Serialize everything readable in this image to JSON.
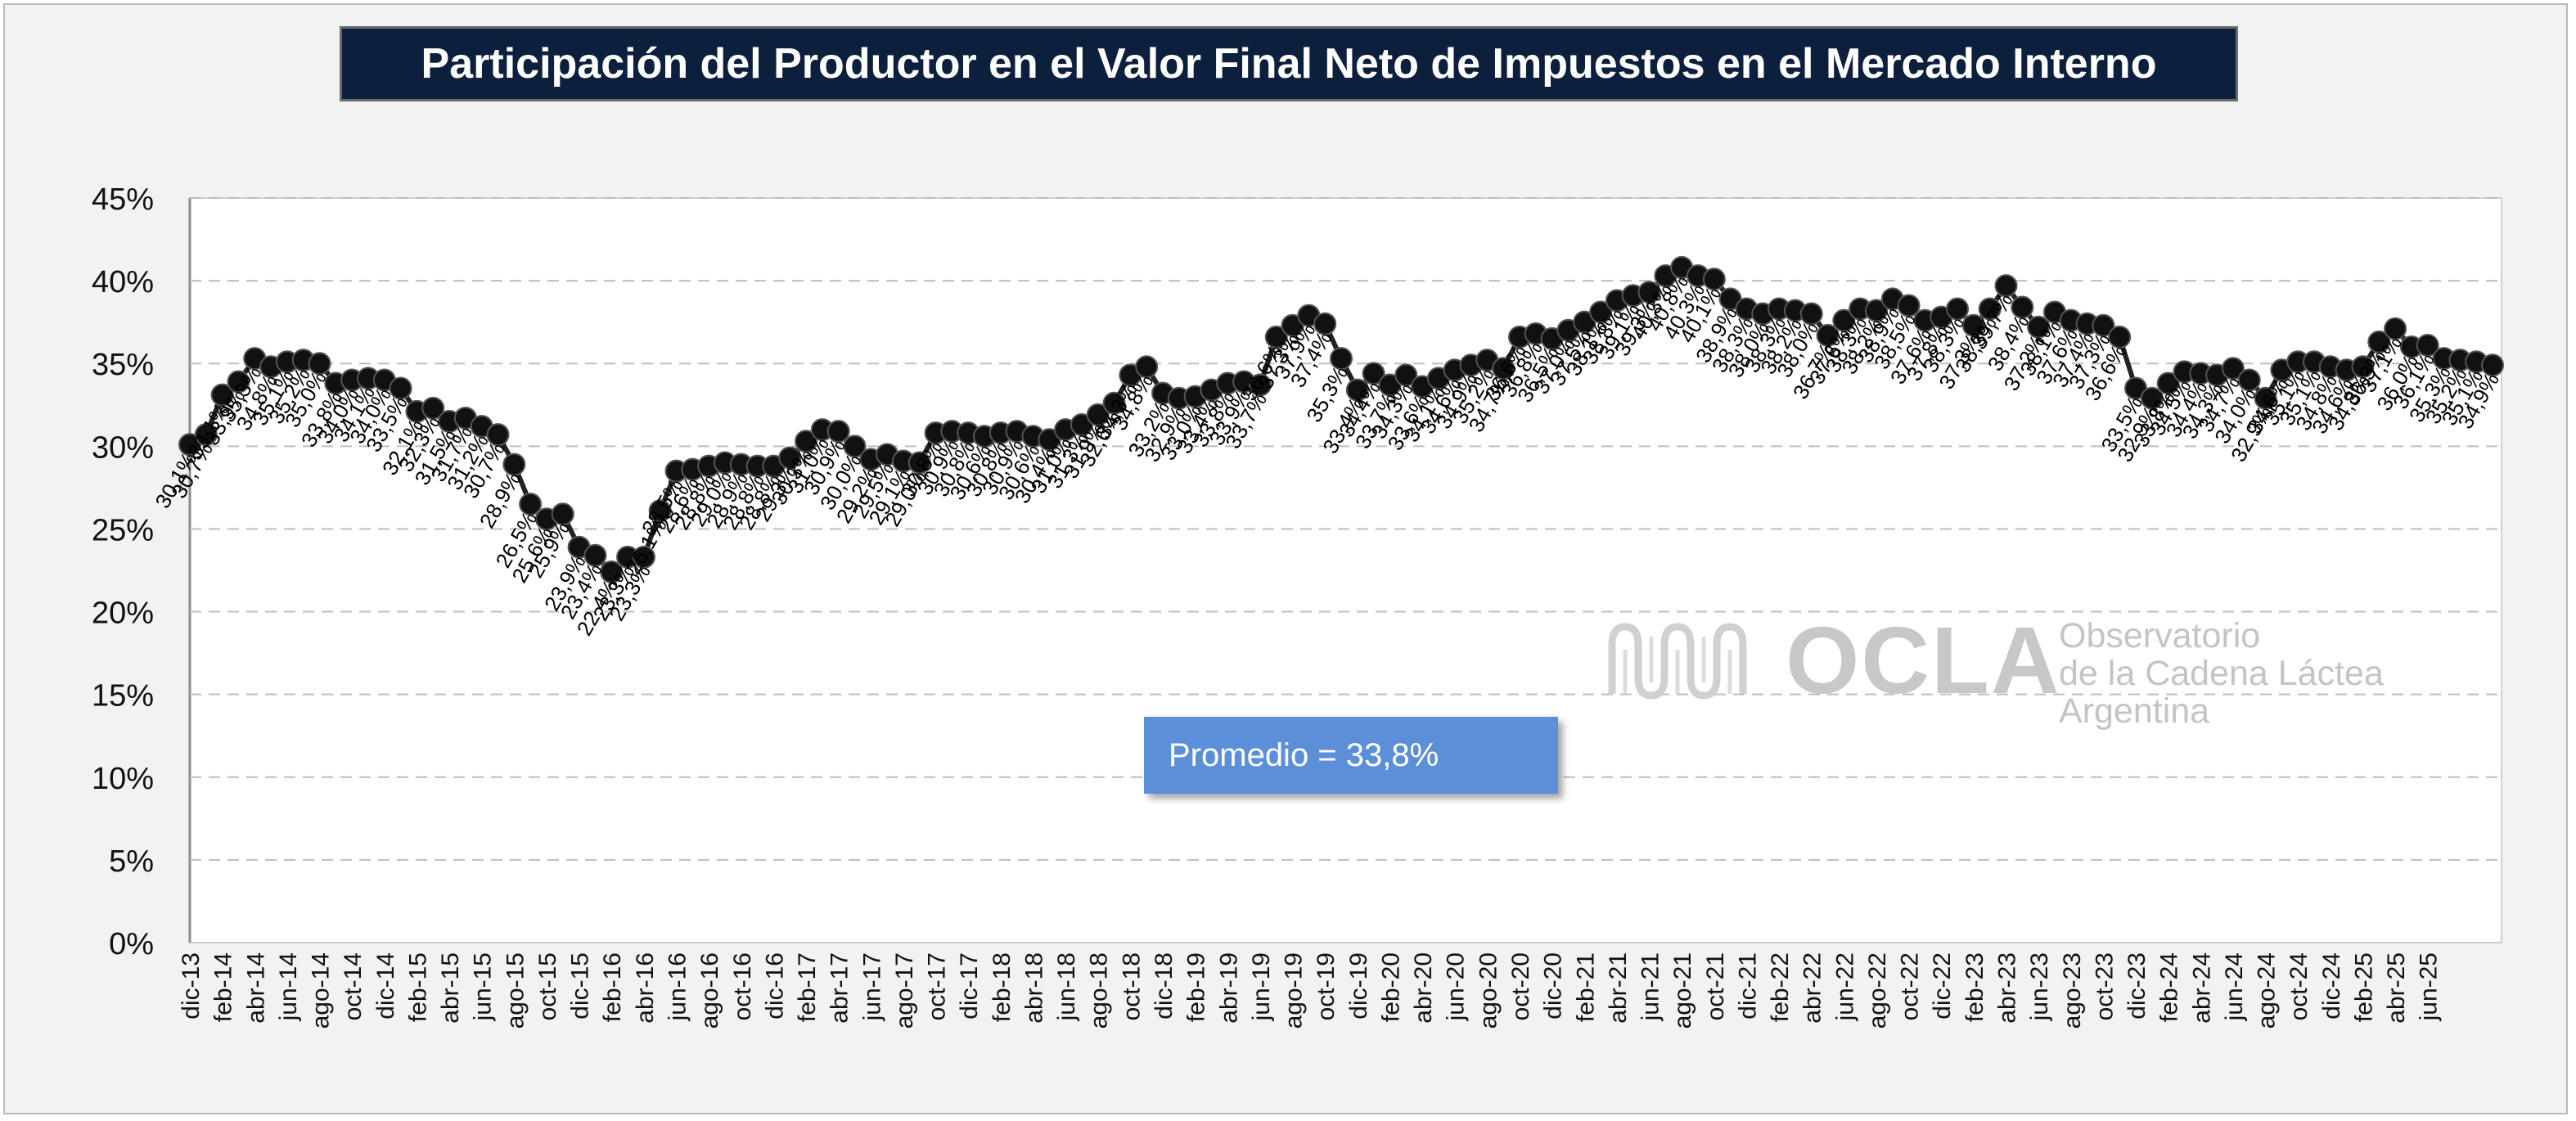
{
  "title": "Participación del Productor en el Valor Final Neto de Impuestos en el Mercado Interno",
  "average_label": "Promedio = 33,8%",
  "logo": {
    "name": "OCLA",
    "line1": "Observatorio",
    "line2": "de la Cadena Láctea",
    "line3": "Argentina"
  },
  "colors": {
    "title_bg": "#0c1f3d",
    "series": "#222222",
    "marker": "#111111",
    "average_box": "#5b8fd8",
    "gridline": "#bdbdbd"
  },
  "chart_data": {
    "type": "line",
    "title": "Participación del Productor en el Valor Final Neto de Impuestos en el Mercado Interno",
    "xlabel": "",
    "ylabel": "",
    "ylim": [
      0,
      45
    ],
    "y_ticks": [
      "0%",
      "5%",
      "10%",
      "15%",
      "20%",
      "25%",
      "30%",
      "35%",
      "40%",
      "45%"
    ],
    "grid": "horizontal dashed",
    "legend": "none",
    "x_tick_labels": [
      "dic-13",
      "feb-14",
      "abr-14",
      "jun-14",
      "ago-14",
      "oct-14",
      "dic-14",
      "feb-15",
      "abr-15",
      "jun-15",
      "ago-15",
      "oct-15",
      "dic-15",
      "feb-16",
      "abr-16",
      "jun-16",
      "ago-16",
      "oct-16",
      "dic-16",
      "feb-17",
      "abr-17",
      "jun-17",
      "ago-17",
      "oct-17",
      "dic-17",
      "feb-18",
      "abr-18",
      "jun-18",
      "ago-18",
      "oct-18",
      "dic-18",
      "feb-19",
      "abr-19",
      "jun-19",
      "ago-19",
      "oct-19",
      "dic-19",
      "feb-20",
      "abr-20",
      "jun-20",
      "ago-20",
      "oct-20",
      "dic-20",
      "feb-21",
      "abr-21",
      "jun-21",
      "ago-21",
      "oct-21",
      "dic-21",
      "feb-22",
      "abr-22",
      "jun-22",
      "ago-22",
      "oct-22",
      "dic-22",
      "feb-23",
      "abr-23",
      "jun-23",
      "ago-23",
      "oct-23",
      "dic-23",
      "feb-24",
      "abr-24",
      "jun-24",
      "ago-24",
      "oct-24",
      "dic-24",
      "feb-25",
      "abr-25",
      "jun-25"
    ],
    "series": [
      {
        "values": [
          30.1,
          30.7,
          33.1,
          33.9,
          35.3,
          34.8,
          35.1,
          35.2,
          35.0,
          33.8,
          34.0,
          34.1,
          34.0,
          33.5,
          32.1,
          32.3,
          31.5,
          31.7,
          31.2,
          30.7,
          28.9,
          26.5,
          25.6,
          25.9,
          23.9,
          23.4,
          22.4,
          23.3,
          23.3,
          26.1,
          28.5,
          28.6,
          28.8,
          29.0,
          28.9,
          28.8,
          28.8,
          29.3,
          30.3,
          31.0,
          30.9,
          30.0,
          29.2,
          29.5,
          29.1,
          29.0,
          30.8,
          30.9,
          30.8,
          30.6,
          30.8,
          30.9,
          30.6,
          30.4,
          31.0,
          31.3,
          31.9,
          32.6,
          34.3,
          34.8,
          33.2,
          32.9,
          33.0,
          33.4,
          33.8,
          33.9,
          33.7,
          36.6,
          37.3,
          37.9,
          37.4,
          35.3,
          33.4,
          34.4,
          33.7,
          34.3,
          33.6,
          34.1,
          34.6,
          34.9,
          35.2,
          34.7,
          36.6,
          36.8,
          36.5,
          37.0,
          37.5,
          38.1,
          38.8,
          39.1,
          39.3,
          40.3,
          40.8,
          40.3,
          40.1,
          38.9,
          38.3,
          38.0,
          38.3,
          38.2,
          38.0,
          36.7,
          37.6,
          38.3,
          38.2,
          38.9,
          38.5,
          37.6,
          37.8,
          38.3,
          37.3,
          38.3,
          39.7,
          38.4,
          37.2,
          38.1,
          37.6,
          37.4,
          37.3,
          36.6,
          33.5,
          32.9,
          33.8,
          34.5,
          34.4,
          34.3,
          34.7,
          34.0,
          32.9,
          34.6,
          35.1,
          35.1,
          34.8,
          34.6,
          34.8,
          36.3,
          37.1,
          36.0,
          36.1,
          35.3,
          35.2,
          35.1,
          34.9
        ],
        "labels": [
          "30,1%",
          "30,7%",
          "33,1%",
          "33,9%",
          "35,3%",
          "34,8%",
          "35,1%",
          "35,2%",
          "35,0%",
          "33,8%",
          "34,0%",
          "34,1%",
          "34,0%",
          "33,5%",
          "32,1%",
          "32,3%",
          "31,5%",
          "31,7%",
          "31,2%",
          "30,7%",
          "28,9%",
          "26,5%",
          "25,6%",
          "25,9%",
          "23,9%",
          "23,4%",
          "22,4%",
          "23,3%",
          "23,3%",
          "26,1%",
          "28,5%",
          "28,6%",
          "28,8%",
          "29,0%",
          "28,9%",
          "28,8%",
          "28,8%",
          "29,3%",
          "30,3%",
          "31,0%",
          "30,9%",
          "30,0%",
          "29,2%",
          "29,5%",
          "29,1%",
          "29,0%",
          "30,8%",
          "30,9%",
          "30,8%",
          "30,6%",
          "30,8%",
          "30,9%",
          "30,6%",
          "30,4%",
          "31,0%",
          "31,3%",
          "31,9%",
          "32,6%",
          "34,3%",
          "34,8%",
          "33,2%",
          "32,9%",
          "33,0%",
          "33,4%",
          "33,8%",
          "33,9%",
          "33,7%",
          "36,6%",
          "37,3%",
          "37,9%",
          "37,4%",
          "35,3%",
          "33,4%",
          "34,4%",
          "33,7%",
          "34,3%",
          "33,6%",
          "34,1%",
          "34,6%",
          "34,9%",
          "35,2%",
          "34,7%",
          "36,6%",
          "36,8%",
          "36,5%",
          "37,0%",
          "37,5%",
          "38,1%",
          "38,8%",
          "39,1%",
          "39,3%",
          "40,3%",
          "40,8%",
          "40,3%",
          "40,1%",
          "38,9%",
          "38,3%",
          "38,0%",
          "38,3%",
          "38,2%",
          "38,0%",
          "36,7%",
          "37,6%",
          "38,3%",
          "38,2%",
          "38,9%",
          "38,5%",
          "37,6%",
          "37,8%",
          "38,3%",
          "37,3%",
          "38,3%",
          "39,7%",
          "38,4%",
          "37,2%",
          "38,1%",
          "37,6%",
          "37,4%",
          "37,3%",
          "36,6%",
          "33,5%",
          "32,9%",
          "33,8%",
          "34,5%",
          "34,4%",
          "34,3%",
          "34,7%",
          "34,0%",
          "32,9%",
          "34,6%",
          "35,1%",
          "35,1%",
          "34,8%",
          "34,6%",
          "34,8%",
          "36,3%",
          "37,1%",
          "36,0%",
          "36,1%",
          "35,3%",
          "35,2%",
          "35,1%",
          "34,9%"
        ]
      }
    ]
  }
}
